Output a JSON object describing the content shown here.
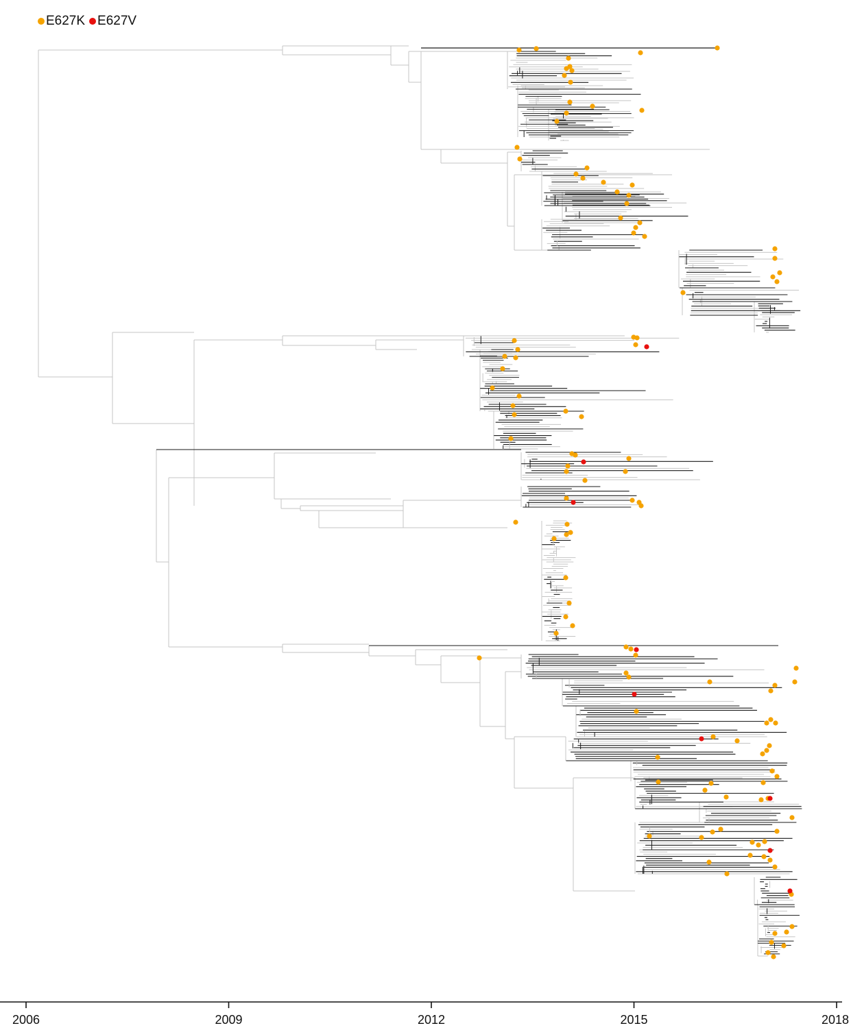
{
  "legend": [
    {
      "label": "E627K",
      "color": "#f5a300"
    },
    {
      "label": "E627V",
      "color": "#e8110f"
    }
  ],
  "colors": {
    "branch_light": "#c4c4c4",
    "branch_dark": "#1a1a1a",
    "axis": "#111111"
  },
  "axis": {
    "ticks": [
      "2006",
      "2009",
      "2012",
      "2015",
      "2018"
    ],
    "range": [
      2006,
      2018
    ]
  }
}
